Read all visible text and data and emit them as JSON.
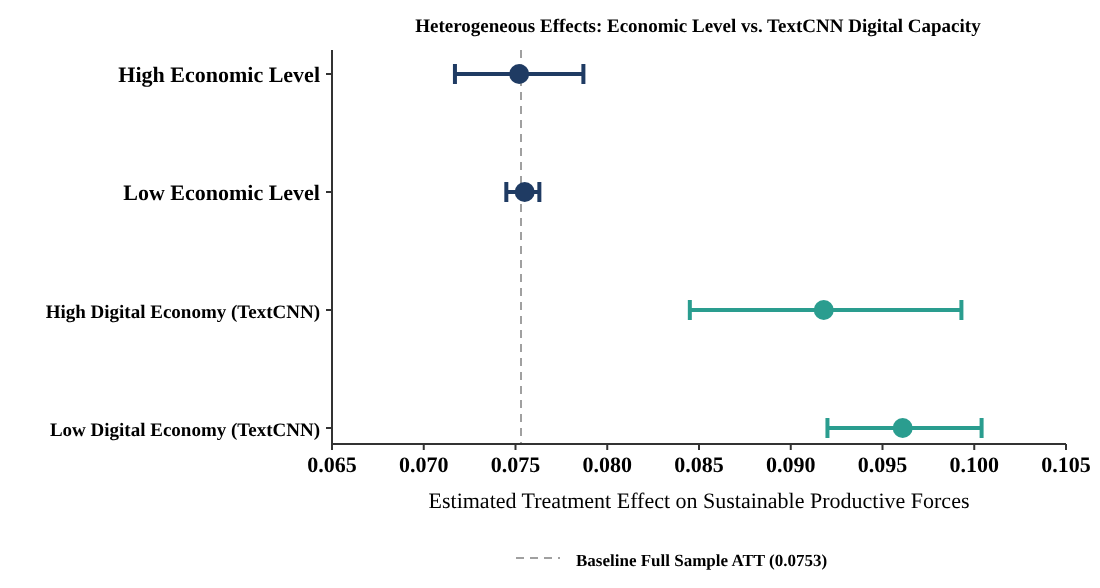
{
  "chart_data": {
    "type": "scatter",
    "orientation": "horizontal",
    "title": "Heterogeneous Effects: Economic Level vs. TextCNN Digital Capacity",
    "xlabel": "Estimated Treatment Effect on Sustainable Productive Forces",
    "categories": [
      "High Economic Level",
      "Low Economic Level",
      "High Digital Economy (TextCNN)",
      "Low Digital Economy (TextCNN)"
    ],
    "values": [
      0.0752,
      0.0755,
      0.0918,
      0.0961
    ],
    "errors": [
      [
        0.0717,
        0.0787
      ],
      [
        0.0745,
        0.0763
      ],
      [
        0.0845,
        0.0993
      ],
      [
        0.092,
        0.1004
      ]
    ],
    "colors": [
      "#1f3b63",
      "#1f3b63",
      "#2a9d8f",
      "#2a9d8f"
    ],
    "xlim": [
      0.065,
      0.105
    ],
    "xticks": [
      {
        "value": 0.065,
        "label": "0.065"
      },
      {
        "value": 0.07,
        "label": "0.070"
      },
      {
        "value": 0.075,
        "label": "0.075"
      },
      {
        "value": 0.08,
        "label": "0.080"
      },
      {
        "value": 0.085,
        "label": "0.085"
      },
      {
        "value": 0.09,
        "label": "0.090"
      },
      {
        "value": 0.095,
        "label": "0.095"
      },
      {
        "value": 0.1,
        "label": "0.100"
      },
      {
        "value": 0.105,
        "label": "0.105"
      }
    ],
    "ref_lines": [
      {
        "axis": "x",
        "value": 0.0753,
        "label": "Baseline Full Sample ATT (0.0753)",
        "color": "#a0a0a0",
        "line_style": "dashed"
      }
    ],
    "marker": "circle",
    "legend": "bottom",
    "grid": false
  }
}
